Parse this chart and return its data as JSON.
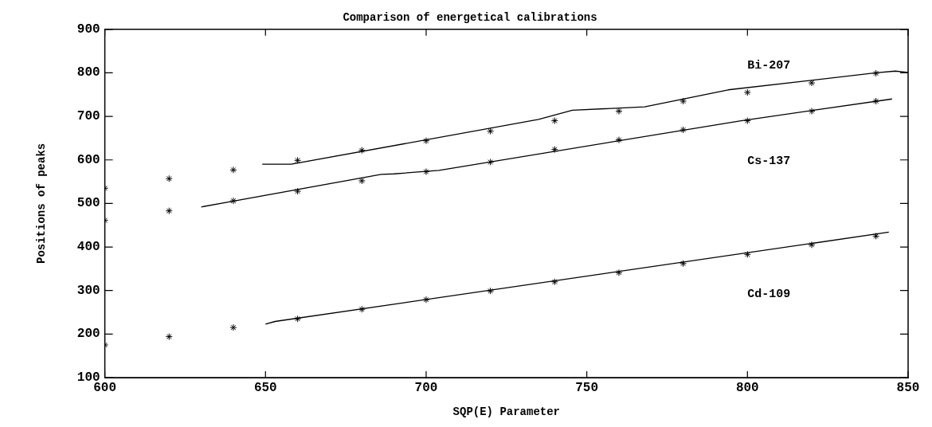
{
  "chart_data": {
    "type": "scatter",
    "title": "Comparison of energetical calibrations",
    "xlabel": "SQP(E) Parameter",
    "ylabel": "Positions of peaks",
    "xlim": [
      600,
      850
    ],
    "xticks": [
      600,
      650,
      700,
      750,
      800,
      850
    ],
    "ylim": [
      100,
      900
    ],
    "yticks": [
      100,
      200,
      300,
      400,
      500,
      600,
      700,
      800,
      900
    ],
    "grid": false,
    "legend": false,
    "marker": "cross",
    "line_style": "solid",
    "series": [
      {
        "color": "#000000",
        "x": [
          600,
          620,
          640,
          660,
          680,
          700,
          720,
          740,
          760,
          780,
          800,
          820,
          840
        ],
        "values": [
          535,
          557,
          577,
          599,
          622,
          644,
          666,
          690,
          712,
          735,
          755,
          777,
          799
        ]
      },
      {
        "type": "line",
        "marker": "none",
        "name": "Bi-207",
        "color": "#000000",
        "x": [
          649,
          658,
          735,
          745.5,
          768,
          794,
          840,
          846,
          850
        ],
        "values": [
          590,
          590,
          693,
          714,
          722,
          761,
          800,
          804,
          801
        ]
      },
      {
        "color": "#000000",
        "x": [
          600,
          620,
          640,
          660,
          680,
          700,
          720,
          740,
          760,
          780,
          800,
          820,
          840
        ],
        "values": [
          461,
          483,
          506,
          528,
          552,
          573,
          595,
          624,
          646,
          669,
          690,
          712,
          735
        ]
      },
      {
        "type": "line",
        "marker": "none",
        "name": "Cs-137",
        "color": "#000000",
        "x": [
          630,
          686,
          690,
          704,
          798,
          845
        ],
        "values": [
          492,
          567,
          568,
          576,
          690,
          740
        ]
      },
      {
        "color": "#000000",
        "x": [
          600,
          620,
          640,
          660,
          680,
          700,
          720,
          740,
          760,
          780,
          800,
          820,
          840
        ],
        "values": [
          175,
          194,
          215,
          235,
          257,
          279,
          299,
          320,
          341,
          362,
          383,
          405,
          425
        ]
      },
      {
        "type": "line",
        "marker": "none",
        "name": "Cd-109",
        "color": "#000000",
        "x": [
          650,
          653,
          844
        ],
        "values": [
          223,
          229,
          434
        ]
      }
    ]
  }
}
